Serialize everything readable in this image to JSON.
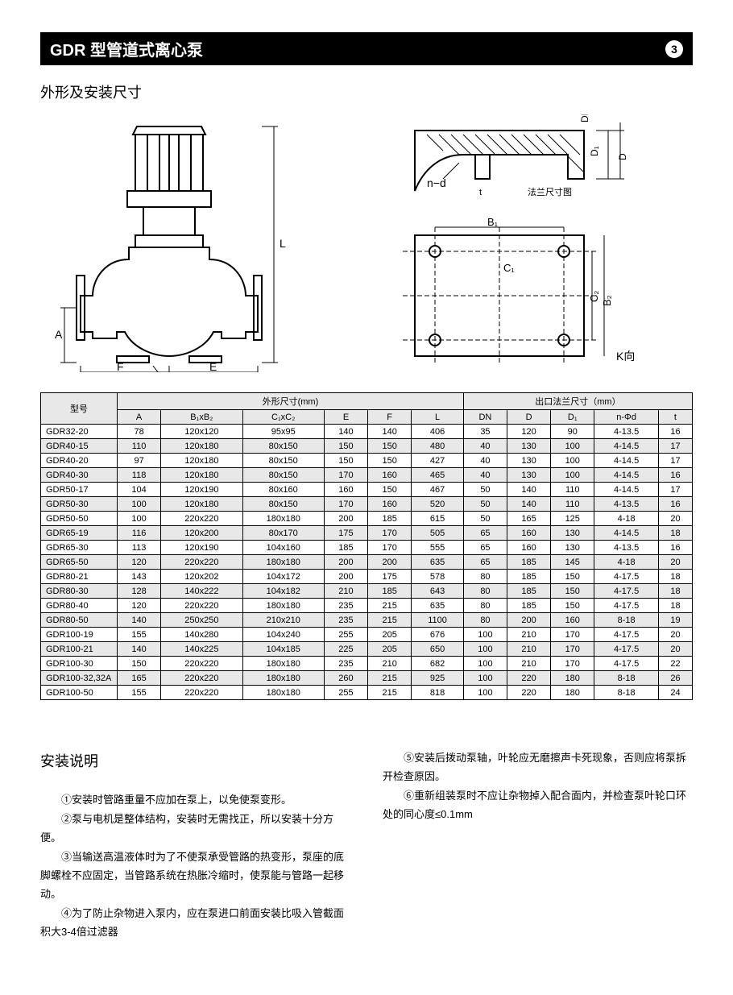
{
  "header": {
    "title": "GDR 型管道式离心泵",
    "page_number": "3"
  },
  "section_dimensions_title": "外形及安装尺寸",
  "diagram_labels": {
    "L": "L",
    "A": "A",
    "F": "F",
    "K": "K",
    "E": "E",
    "DN": "DN",
    "D1": "D₁",
    "D": "D",
    "n_d": "n−d",
    "t": "t",
    "flange_caption": "法兰尺寸图",
    "B1": "B₁",
    "B2": "B₂",
    "C1": "C₁",
    "C2": "C₂",
    "K_dir": "K向"
  },
  "table": {
    "header_model": "型号",
    "header_outer": "外形尺寸(mm)",
    "header_flange": "出口法兰尺寸（mm）",
    "cols_outer": [
      "A",
      "B₁xB₂",
      "C₁xC₂",
      "E",
      "F",
      "L"
    ],
    "cols_flange": [
      "DN",
      "D",
      "D₁",
      "n-Φd",
      "t"
    ],
    "rows": [
      [
        "GDR32-20",
        "78",
        "120x120",
        "95x95",
        "140",
        "140",
        "406",
        "35",
        "120",
        "90",
        "4-13.5",
        "16"
      ],
      [
        "GDR40-15",
        "110",
        "120x180",
        "80x150",
        "150",
        "150",
        "480",
        "40",
        "130",
        "100",
        "4-14.5",
        "17"
      ],
      [
        "GDR40-20",
        "97",
        "120x180",
        "80x150",
        "150",
        "150",
        "427",
        "40",
        "130",
        "100",
        "4-14.5",
        "17"
      ],
      [
        "GDR40-30",
        "118",
        "120x180",
        "80x150",
        "170",
        "160",
        "465",
        "40",
        "130",
        "100",
        "4-14.5",
        "16"
      ],
      [
        "GDR50-17",
        "104",
        "120x190",
        "80x160",
        "160",
        "150",
        "467",
        "50",
        "140",
        "110",
        "4-14.5",
        "17"
      ],
      [
        "GDR50-30",
        "100",
        "120x180",
        "80x150",
        "170",
        "160",
        "520",
        "50",
        "140",
        "110",
        "4-13.5",
        "16"
      ],
      [
        "GDR50-50",
        "100",
        "220x220",
        "180x180",
        "200",
        "185",
        "615",
        "50",
        "165",
        "125",
        "4-18",
        "20"
      ],
      [
        "GDR65-19",
        "116",
        "120x200",
        "80x170",
        "175",
        "170",
        "505",
        "65",
        "160",
        "130",
        "4-14.5",
        "18"
      ],
      [
        "GDR65-30",
        "113",
        "120x190",
        "104x160",
        "185",
        "170",
        "555",
        "65",
        "160",
        "130",
        "4-13.5",
        "16"
      ],
      [
        "GDR65-50",
        "120",
        "220x220",
        "180x180",
        "200",
        "200",
        "635",
        "65",
        "185",
        "145",
        "4-18",
        "20"
      ],
      [
        "GDR80-21",
        "143",
        "120x202",
        "104x172",
        "200",
        "175",
        "578",
        "80",
        "185",
        "150",
        "4-17.5",
        "18"
      ],
      [
        "GDR80-30",
        "128",
        "140x222",
        "104x182",
        "210",
        "185",
        "643",
        "80",
        "185",
        "150",
        "4-17.5",
        "18"
      ],
      [
        "GDR80-40",
        "120",
        "220x220",
        "180x180",
        "235",
        "215",
        "635",
        "80",
        "185",
        "150",
        "4-17.5",
        "18"
      ],
      [
        "GDR80-50",
        "140",
        "250x250",
        "210x210",
        "235",
        "215",
        "1100",
        "80",
        "200",
        "160",
        "8-18",
        "19"
      ],
      [
        "GDR100-19",
        "155",
        "140x280",
        "104x240",
        "255",
        "205",
        "676",
        "100",
        "210",
        "170",
        "4-17.5",
        "20"
      ],
      [
        "GDR100-21",
        "140",
        "140x225",
        "104x185",
        "225",
        "205",
        "650",
        "100",
        "210",
        "170",
        "4-17.5",
        "20"
      ],
      [
        "GDR100-30",
        "150",
        "220x220",
        "180x180",
        "235",
        "210",
        "682",
        "100",
        "210",
        "170",
        "4-17.5",
        "22"
      ],
      [
        "GDR100-32,32A",
        "165",
        "220x220",
        "180x180",
        "260",
        "215",
        "925",
        "100",
        "220",
        "180",
        "8-18",
        "26"
      ],
      [
        "GDR100-50",
        "155",
        "220x220",
        "180x180",
        "255",
        "215",
        "818",
        "100",
        "220",
        "180",
        "8-18",
        "24"
      ]
    ]
  },
  "install": {
    "title": "安装说明",
    "p1": "①安装时管路重量不应加在泵上，以免使泵变形。",
    "p2": "②泵与电机是整体结构，安装时无需找正，所以安装十分方便。",
    "p3": "③当输送高温液体时为了不使泵承受管路的热变形，泵座的底脚螺栓不应固定，当管路系统在热胀冷缩时，使泵能与管路一起移动。",
    "p4": "④为了防止杂物进入泵内，应在泵进口前面安装比吸入管截面积大3-4倍过滤器",
    "p5": "⑤安装后拨动泵轴，叶轮应无磨擦声卡死现象，否则应将泵拆开检查原因。",
    "p6": "⑥重新组装泵时不应让杂物掉入配合面内，并检查泵叶轮口环处的同心度≤0.1mm"
  }
}
